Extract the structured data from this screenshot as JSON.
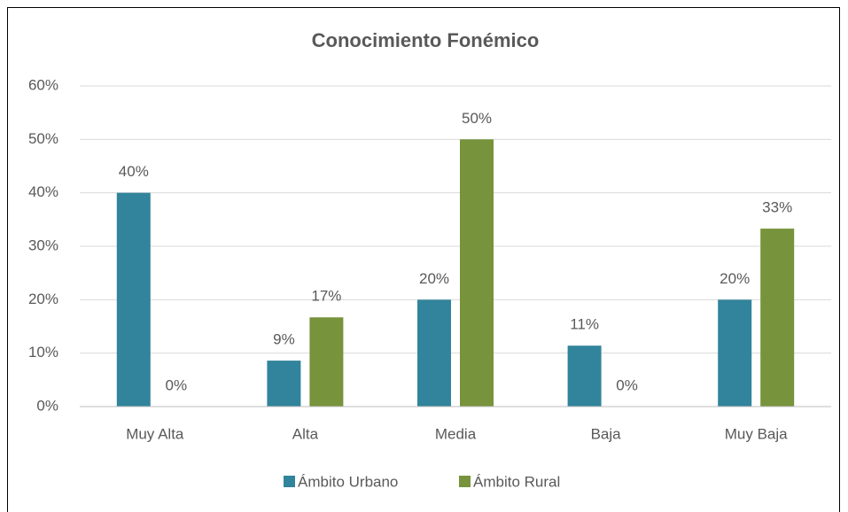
{
  "chart_data": {
    "type": "bar",
    "title": "Conocimiento Fonémico",
    "categories": [
      "Muy Alta",
      "Alta",
      "Media",
      "Baja",
      "Muy Baja"
    ],
    "series": [
      {
        "name": "Ámbito Urbano",
        "color": "#31849b",
        "values": [
          40,
          8.6,
          20,
          11.4,
          20
        ],
        "value_labels": [
          "40%",
          "9%",
          "20%",
          "11%",
          "20%"
        ]
      },
      {
        "name": "Ámbito Rural",
        "color": "#77933c",
        "values": [
          0,
          16.7,
          50,
          0,
          33.3
        ],
        "value_labels": [
          "0%",
          "17%",
          "50%",
          "0%",
          "33%"
        ]
      }
    ],
    "ylim": [
      0,
      60
    ],
    "yticks": [
      {
        "value": 0,
        "label": "0%"
      },
      {
        "value": 10,
        "label": "10%"
      },
      {
        "value": 20,
        "label": "20%"
      },
      {
        "value": 30,
        "label": "30%"
      },
      {
        "value": 40,
        "label": "40%"
      },
      {
        "value": 50,
        "label": "50%"
      },
      {
        "value": 60,
        "label": "60%"
      }
    ],
    "grid": true,
    "legend": "bottom"
  }
}
